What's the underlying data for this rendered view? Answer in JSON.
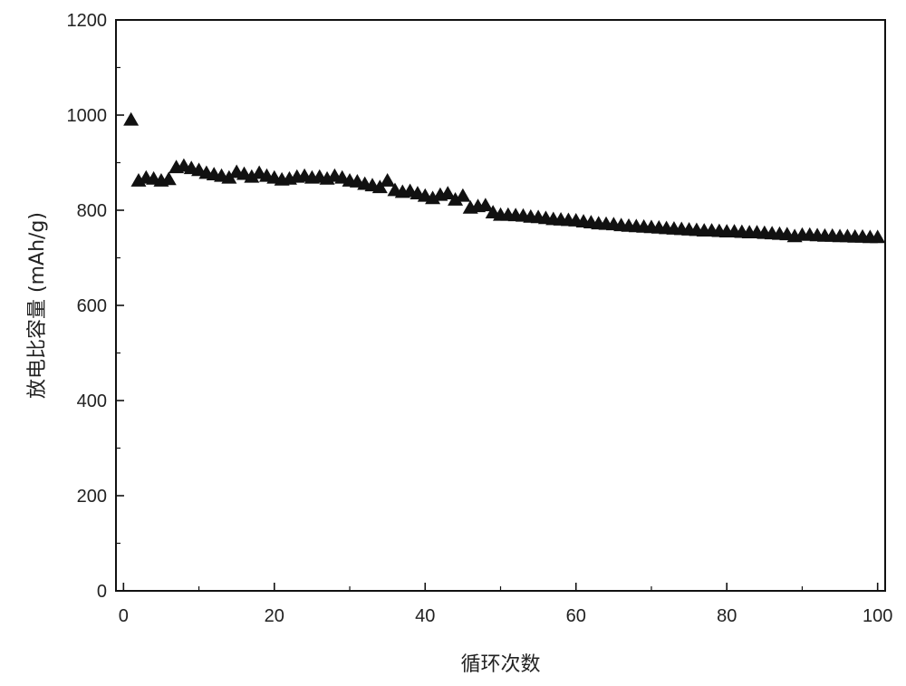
{
  "chart_data": {
    "type": "scatter",
    "title": "",
    "xlabel": "循环次数",
    "ylabel": "放电比容量 (mAh/g)",
    "xlim": [
      -1,
      101
    ],
    "ylim": [
      0,
      1200
    ],
    "xticks": [
      0,
      20,
      40,
      60,
      80,
      100
    ],
    "yticks": [
      0,
      200,
      400,
      600,
      800,
      1000,
      1200
    ],
    "grid": false,
    "legend": "none",
    "marker": "triangle",
    "marker_color": "#111111",
    "series": [
      {
        "x": [
          1,
          2,
          3,
          4,
          5,
          6,
          7,
          8,
          9,
          10,
          11,
          12,
          13,
          14,
          15,
          16,
          17,
          18,
          19,
          20,
          21,
          22,
          23,
          24,
          25,
          26,
          27,
          28,
          29,
          30,
          31,
          32,
          33,
          34,
          35,
          36,
          37,
          38,
          39,
          40,
          41,
          42,
          43,
          44,
          45,
          46,
          47,
          48,
          49,
          50,
          51,
          52,
          53,
          54,
          55,
          56,
          57,
          58,
          59,
          60,
          61,
          62,
          63,
          64,
          65,
          66,
          67,
          68,
          69,
          70,
          71,
          72,
          73,
          74,
          75,
          76,
          77,
          78,
          79,
          80,
          81,
          82,
          83,
          84,
          85,
          86,
          87,
          88,
          89,
          90,
          91,
          92,
          93,
          94,
          95,
          96,
          97,
          98,
          99,
          100
        ],
        "y": [
          990,
          862,
          868,
          866,
          862,
          865,
          890,
          893,
          888,
          884,
          878,
          875,
          872,
          868,
          880,
          876,
          870,
          878,
          872,
          868,
          864,
          866,
          870,
          872,
          868,
          870,
          866,
          872,
          868,
          862,
          860,
          855,
          852,
          848,
          862,
          842,
          838,
          840,
          835,
          830,
          825,
          832,
          835,
          822,
          830,
          805,
          808,
          810,
          795,
          790,
          790,
          789,
          788,
          786,
          785,
          783,
          781,
          780,
          779,
          778,
          776,
          774,
          772,
          771,
          770,
          768,
          767,
          766,
          765,
          764,
          763,
          762,
          761,
          760,
          759,
          758,
          757,
          757,
          756,
          755,
          755,
          754,
          753,
          753,
          752,
          751,
          750,
          749,
          745,
          748,
          748,
          747,
          746,
          746,
          745,
          745,
          744,
          744,
          743,
          743
        ]
      }
    ]
  }
}
